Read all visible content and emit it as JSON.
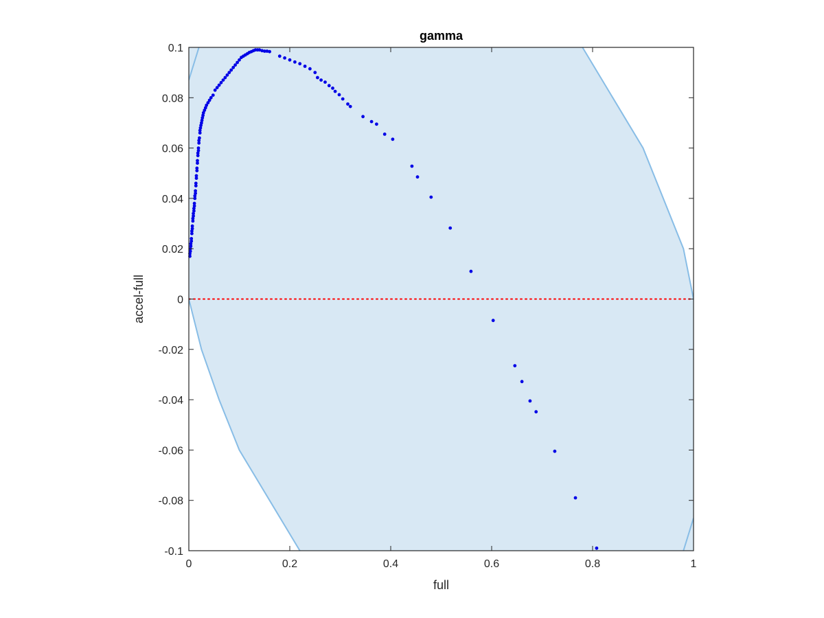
{
  "chart_data": {
    "type": "scatter",
    "title": "gamma",
    "xlabel": "full",
    "ylabel": "accel-full",
    "xlim": [
      0,
      1
    ],
    "ylim": [
      -0.1,
      0.1
    ],
    "xticks": [
      0,
      0.2,
      0.4,
      0.6,
      0.8,
      1
    ],
    "xtick_labels": [
      "0",
      "0.2",
      "0.4",
      "0.6",
      "0.8",
      "1"
    ],
    "yticks": [
      -0.1,
      -0.08,
      -0.06,
      -0.04,
      -0.02,
      0,
      0.02,
      0.04,
      0.06,
      0.08,
      0.1
    ],
    "ytick_labels": [
      "-0.1",
      "-0.08",
      "-0.06",
      "-0.04",
      "-0.02",
      "0",
      "0.02",
      "0.04",
      "0.06",
      "0.08",
      "0.1"
    ],
    "grid": false,
    "reference_line": {
      "y": 0,
      "style": "dotted",
      "color": "#ff0000"
    },
    "region": {
      "fill_color": "#d8e8f4",
      "edge_color": "#88bde6",
      "left_boundary": [
        [
          0.22,
          -0.1
        ],
        [
          0.16,
          -0.08
        ],
        [
          0.1,
          -0.06
        ],
        [
          0.06,
          -0.04
        ],
        [
          0.025,
          -0.02
        ],
        [
          0.0,
          0.0
        ],
        [
          -0.02,
          0.02
        ],
        [
          -0.03,
          0.04
        ],
        [
          -0.035,
          0.06
        ],
        [
          -0.03,
          0.08
        ],
        [
          -0.02,
          0.1
        ]
      ],
      "right_boundary": [
        [
          0.78,
          0.1
        ],
        [
          0.84,
          0.08
        ],
        [
          0.9,
          0.06
        ],
        [
          0.94,
          0.04
        ],
        [
          0.98,
          0.02
        ],
        [
          1.0,
          0.0
        ],
        [
          1.02,
          -0.02
        ],
        [
          1.035,
          -0.04
        ],
        [
          1.04,
          -0.06
        ],
        [
          1.035,
          -0.08
        ],
        [
          1.02,
          -0.1
        ]
      ],
      "top_left_edge": [
        [
          0.0,
          0.087
        ],
        [
          0.02,
          0.1
        ]
      ],
      "bottom_right_edge": [
        [
          0.98,
          -0.1
        ],
        [
          1.0,
          -0.087
        ]
      ]
    },
    "series": [
      {
        "marker_color": "#0000e6",
        "points": [
          [
            0.002,
            0.017
          ],
          [
            0.002,
            0.018
          ],
          [
            0.003,
            0.019
          ],
          [
            0.003,
            0.02
          ],
          [
            0.004,
            0.021
          ],
          [
            0.004,
            0.022
          ],
          [
            0.005,
            0.023
          ],
          [
            0.005,
            0.024
          ],
          [
            0.006,
            0.026
          ],
          [
            0.006,
            0.027
          ],
          [
            0.007,
            0.028
          ],
          [
            0.007,
            0.029
          ],
          [
            0.008,
            0.031
          ],
          [
            0.008,
            0.032
          ],
          [
            0.009,
            0.033
          ],
          [
            0.009,
            0.034
          ],
          [
            0.01,
            0.035
          ],
          [
            0.01,
            0.036
          ],
          [
            0.011,
            0.037
          ],
          [
            0.011,
            0.038
          ],
          [
            0.012,
            0.04
          ],
          [
            0.012,
            0.041
          ],
          [
            0.013,
            0.042
          ],
          [
            0.013,
            0.043
          ],
          [
            0.014,
            0.045
          ],
          [
            0.014,
            0.046
          ],
          [
            0.015,
            0.048
          ],
          [
            0.015,
            0.049
          ],
          [
            0.016,
            0.051
          ],
          [
            0.016,
            0.052
          ],
          [
            0.017,
            0.054
          ],
          [
            0.017,
            0.055
          ],
          [
            0.018,
            0.057
          ],
          [
            0.018,
            0.058
          ],
          [
            0.019,
            0.059
          ],
          [
            0.019,
            0.06
          ],
          [
            0.02,
            0.062
          ],
          [
            0.02,
            0.063
          ],
          [
            0.021,
            0.064
          ],
          [
            0.022,
            0.066
          ],
          [
            0.022,
            0.067
          ],
          [
            0.023,
            0.068
          ],
          [
            0.024,
            0.069
          ],
          [
            0.025,
            0.07
          ],
          [
            0.026,
            0.071
          ],
          [
            0.027,
            0.072
          ],
          [
            0.028,
            0.073
          ],
          [
            0.029,
            0.074
          ],
          [
            0.031,
            0.075
          ],
          [
            0.033,
            0.076
          ],
          [
            0.035,
            0.077
          ],
          [
            0.038,
            0.078
          ],
          [
            0.041,
            0.079
          ],
          [
            0.044,
            0.08
          ],
          [
            0.048,
            0.081
          ],
          [
            0.052,
            0.083
          ],
          [
            0.056,
            0.084
          ],
          [
            0.06,
            0.085
          ],
          [
            0.064,
            0.086
          ],
          [
            0.068,
            0.087
          ],
          [
            0.072,
            0.088
          ],
          [
            0.076,
            0.089
          ],
          [
            0.08,
            0.09
          ],
          [
            0.084,
            0.091
          ],
          [
            0.088,
            0.092
          ],
          [
            0.092,
            0.093
          ],
          [
            0.096,
            0.094
          ],
          [
            0.1,
            0.095
          ],
          [
            0.104,
            0.096
          ],
          [
            0.108,
            0.0965
          ],
          [
            0.112,
            0.097
          ],
          [
            0.116,
            0.0975
          ],
          [
            0.12,
            0.098
          ],
          [
            0.124,
            0.0983
          ],
          [
            0.128,
            0.0987
          ],
          [
            0.132,
            0.099
          ],
          [
            0.136,
            0.099
          ],
          [
            0.14,
            0.099
          ],
          [
            0.145,
            0.0987
          ],
          [
            0.15,
            0.0985
          ],
          [
            0.155,
            0.0985
          ],
          [
            0.16,
            0.0983
          ],
          [
            0.18,
            0.0965
          ],
          [
            0.19,
            0.0958
          ],
          [
            0.2,
            0.095
          ],
          [
            0.21,
            0.0942
          ],
          [
            0.22,
            0.0935
          ],
          [
            0.23,
            0.0925
          ],
          [
            0.24,
            0.0915
          ],
          [
            0.25,
            0.09
          ],
          [
            0.255,
            0.088
          ],
          [
            0.262,
            0.087
          ],
          [
            0.27,
            0.0862
          ],
          [
            0.278,
            0.0848
          ],
          [
            0.285,
            0.0838
          ],
          [
            0.29,
            0.0825
          ],
          [
            0.298,
            0.0812
          ],
          [
            0.305,
            0.0795
          ],
          [
            0.315,
            0.0775
          ],
          [
            0.32,
            0.0765
          ],
          [
            0.345,
            0.0725
          ],
          [
            0.362,
            0.0705
          ],
          [
            0.372,
            0.0695
          ],
          [
            0.388,
            0.0655
          ],
          [
            0.404,
            0.0635
          ],
          [
            0.442,
            0.0528
          ],
          [
            0.453,
            0.0485
          ],
          [
            0.48,
            0.0405
          ],
          [
            0.518,
            0.0282
          ],
          [
            0.559,
            0.011
          ],
          [
            0.603,
            -0.0085
          ],
          [
            0.646,
            -0.0265
          ],
          [
            0.66,
            -0.0328
          ],
          [
            0.676,
            -0.0405
          ],
          [
            0.688,
            -0.0448
          ],
          [
            0.725,
            -0.0605
          ],
          [
            0.766,
            -0.079
          ],
          [
            0.808,
            -0.099
          ]
        ]
      }
    ]
  }
}
